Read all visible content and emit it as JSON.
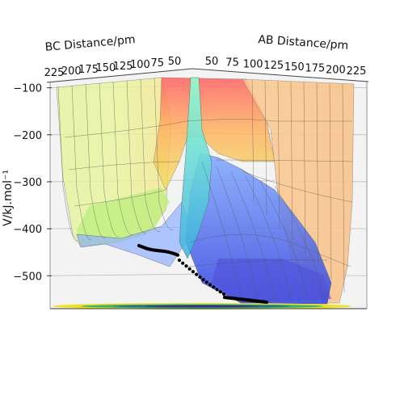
{
  "chart_data": {
    "type": "surface3d",
    "xlabel": "AB Distance/pm",
    "ylabel": "BC Distance/pm",
    "zlabel": "V/kJ.mol⁻¹",
    "ab_ticks": [
      "50",
      "75",
      "100",
      "125",
      "150",
      "175",
      "200",
      "225"
    ],
    "bc_ticks": [
      "225",
      "200",
      "175",
      "150",
      "125",
      "100",
      "75",
      "50"
    ],
    "z_ticks": [
      "−100",
      "−200",
      "−300",
      "−400",
      "−500"
    ],
    "z_values": [
      -100,
      -200,
      -300,
      -400,
      -500
    ],
    "zlim": [
      -570,
      -80
    ],
    "colormap": "jet",
    "contour_colormap": "viridis",
    "trajectory_color": "#000000"
  }
}
